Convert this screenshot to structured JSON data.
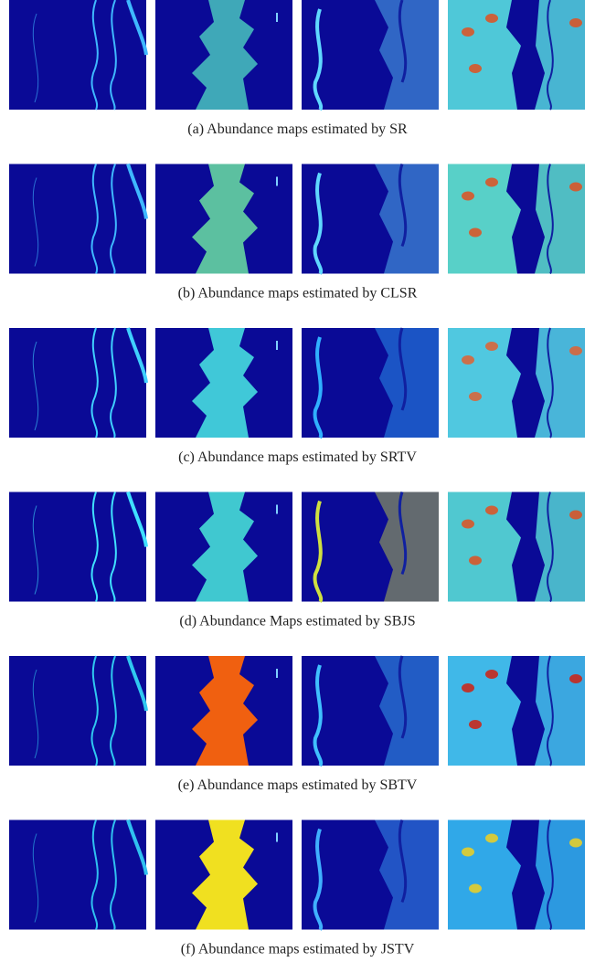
{
  "figure": {
    "subfigures": [
      {
        "caption": "(a) Abundance maps estimated by SR"
      },
      {
        "caption": "(b) Abundance maps estimated by CLSR"
      },
      {
        "caption": "(c) Abundance maps estimated by SRTV"
      },
      {
        "caption": "(d) Abundance Maps estimated by SBJS"
      },
      {
        "caption": "(e) Abundance maps estimated by SBTV"
      },
      {
        "caption": "(f) Abundance maps estimated by JSTV"
      }
    ]
  }
}
